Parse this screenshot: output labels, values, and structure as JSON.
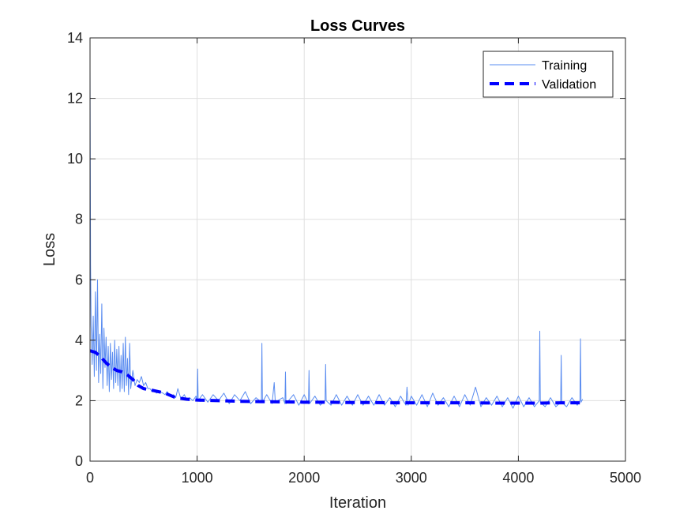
{
  "chart_data": {
    "type": "line",
    "title": "Loss Curves",
    "xlabel": "Iteration",
    "ylabel": "Loss",
    "xlim": [
      0,
      5000
    ],
    "ylim": [
      0,
      14
    ],
    "xticks": [
      "0",
      "1000",
      "2000",
      "3000",
      "4000",
      "5000"
    ],
    "yticks": [
      "0",
      "2",
      "4",
      "6",
      "8",
      "10",
      "12",
      "14"
    ],
    "grid": true,
    "legend_position": "top-right",
    "series": [
      {
        "name": "Training",
        "style": "solid-thin",
        "color": "#5a8cf0",
        "points": [
          [
            0,
            13.0
          ],
          [
            5,
            6.5
          ],
          [
            10,
            4.5
          ],
          [
            20,
            3.2
          ],
          [
            30,
            4.8
          ],
          [
            40,
            2.8
          ],
          [
            50,
            5.6
          ],
          [
            60,
            3.0
          ],
          [
            70,
            6.0
          ],
          [
            80,
            2.6
          ],
          [
            90,
            4.2
          ],
          [
            100,
            2.9
          ],
          [
            110,
            5.2
          ],
          [
            120,
            2.4
          ],
          [
            130,
            4.4
          ],
          [
            140,
            3.1
          ],
          [
            150,
            4.1
          ],
          [
            160,
            2.5
          ],
          [
            170,
            3.8
          ],
          [
            180,
            2.3
          ],
          [
            190,
            3.9
          ],
          [
            200,
            2.7
          ],
          [
            210,
            3.6
          ],
          [
            220,
            2.4
          ],
          [
            230,
            4.0
          ],
          [
            240,
            2.6
          ],
          [
            250,
            3.7
          ],
          [
            260,
            2.5
          ],
          [
            270,
            3.8
          ],
          [
            280,
            2.3
          ],
          [
            290,
            3.5
          ],
          [
            300,
            2.4
          ],
          [
            310,
            3.9
          ],
          [
            320,
            2.3
          ],
          [
            330,
            4.1
          ],
          [
            340,
            2.5
          ],
          [
            350,
            3.4
          ],
          [
            360,
            2.2
          ],
          [
            370,
            3.9
          ],
          [
            380,
            2.4
          ],
          [
            400,
            3.0
          ],
          [
            420,
            2.5
          ],
          [
            440,
            2.7
          ],
          [
            460,
            2.6
          ],
          [
            480,
            2.8
          ],
          [
            500,
            2.5
          ],
          [
            520,
            2.6
          ],
          [
            540,
            2.4
          ],
          [
            560,
            2.4
          ],
          [
            580,
            2.3
          ],
          [
            600,
            2.35
          ],
          [
            620,
            2.25
          ],
          [
            650,
            2.3
          ],
          [
            680,
            2.25
          ],
          [
            700,
            2.2
          ],
          [
            720,
            2.3
          ],
          [
            750,
            2.15
          ],
          [
            780,
            2.2
          ],
          [
            800,
            2.1
          ],
          [
            820,
            2.4
          ],
          [
            850,
            2.05
          ],
          [
            880,
            2.2
          ],
          [
            900,
            2.05
          ],
          [
            930,
            2.1
          ],
          [
            960,
            2.0
          ],
          [
            990,
            2.15
          ],
          [
            1000,
            2.0
          ],
          [
            1005,
            3.05
          ],
          [
            1010,
            2.0
          ],
          [
            1050,
            2.2
          ],
          [
            1100,
            1.95
          ],
          [
            1150,
            2.2
          ],
          [
            1200,
            2.0
          ],
          [
            1250,
            2.25
          ],
          [
            1300,
            1.9
          ],
          [
            1350,
            2.2
          ],
          [
            1400,
            2.0
          ],
          [
            1450,
            2.3
          ],
          [
            1500,
            1.9
          ],
          [
            1550,
            2.1
          ],
          [
            1600,
            1.95
          ],
          [
            1605,
            3.9
          ],
          [
            1610,
            1.95
          ],
          [
            1650,
            2.2
          ],
          [
            1700,
            1.9
          ],
          [
            1720,
            2.6
          ],
          [
            1730,
            1.95
          ],
          [
            1800,
            2.1
          ],
          [
            1820,
            1.9
          ],
          [
            1825,
            2.95
          ],
          [
            1830,
            1.9
          ],
          [
            1900,
            2.2
          ],
          [
            1950,
            1.85
          ],
          [
            2000,
            2.2
          ],
          [
            2040,
            1.9
          ],
          [
            2045,
            3.0
          ],
          [
            2050,
            1.9
          ],
          [
            2100,
            2.15
          ],
          [
            2150,
            1.85
          ],
          [
            2195,
            2.0
          ],
          [
            2200,
            3.2
          ],
          [
            2205,
            2.0
          ],
          [
            2250,
            1.85
          ],
          [
            2300,
            2.2
          ],
          [
            2350,
            1.85
          ],
          [
            2400,
            2.15
          ],
          [
            2450,
            1.85
          ],
          [
            2500,
            2.2
          ],
          [
            2550,
            1.85
          ],
          [
            2600,
            2.15
          ],
          [
            2650,
            1.85
          ],
          [
            2700,
            2.2
          ],
          [
            2750,
            1.85
          ],
          [
            2800,
            2.1
          ],
          [
            2850,
            1.8
          ],
          [
            2900,
            2.15
          ],
          [
            2950,
            1.85
          ],
          [
            2960,
            2.45
          ],
          [
            2970,
            1.85
          ],
          [
            3000,
            2.15
          ],
          [
            3050,
            1.85
          ],
          [
            3100,
            2.2
          ],
          [
            3150,
            1.8
          ],
          [
            3200,
            2.25
          ],
          [
            3250,
            1.85
          ],
          [
            3300,
            2.1
          ],
          [
            3350,
            1.8
          ],
          [
            3400,
            2.15
          ],
          [
            3450,
            1.8
          ],
          [
            3500,
            2.2
          ],
          [
            3550,
            1.85
          ],
          [
            3600,
            2.45
          ],
          [
            3650,
            1.8
          ],
          [
            3700,
            2.1
          ],
          [
            3750,
            1.85
          ],
          [
            3800,
            2.15
          ],
          [
            3850,
            1.8
          ],
          [
            3900,
            2.1
          ],
          [
            3950,
            1.75
          ],
          [
            4000,
            2.15
          ],
          [
            4050,
            1.8
          ],
          [
            4100,
            2.1
          ],
          [
            4150,
            1.8
          ],
          [
            4195,
            2.0
          ],
          [
            4200,
            4.3
          ],
          [
            4205,
            1.95
          ],
          [
            4250,
            1.8
          ],
          [
            4300,
            2.1
          ],
          [
            4350,
            1.8
          ],
          [
            4395,
            1.95
          ],
          [
            4400,
            3.5
          ],
          [
            4405,
            1.95
          ],
          [
            4450,
            1.8
          ],
          [
            4500,
            2.1
          ],
          [
            4550,
            1.85
          ],
          [
            4575,
            2.0
          ],
          [
            4580,
            4.05
          ],
          [
            4585,
            1.95
          ],
          [
            4600,
            2.05
          ]
        ]
      },
      {
        "name": "Validation",
        "style": "dashed-thick",
        "color": "#0000ff",
        "points": [
          [
            0,
            3.65
          ],
          [
            50,
            3.6
          ],
          [
            100,
            3.45
          ],
          [
            150,
            3.25
          ],
          [
            200,
            3.1
          ],
          [
            250,
            3.0
          ],
          [
            300,
            2.95
          ],
          [
            350,
            2.85
          ],
          [
            400,
            2.7
          ],
          [
            450,
            2.5
          ],
          [
            500,
            2.4
          ],
          [
            600,
            2.33
          ],
          [
            700,
            2.25
          ],
          [
            800,
            2.1
          ],
          [
            900,
            2.05
          ],
          [
            1000,
            2.02
          ],
          [
            1200,
            2.0
          ],
          [
            1400,
            1.98
          ],
          [
            1600,
            1.97
          ],
          [
            1800,
            1.96
          ],
          [
            2000,
            1.95
          ],
          [
            2200,
            1.95
          ],
          [
            2400,
            1.94
          ],
          [
            2600,
            1.94
          ],
          [
            2800,
            1.93
          ],
          [
            3000,
            1.93
          ],
          [
            3200,
            1.93
          ],
          [
            3400,
            1.93
          ],
          [
            3600,
            1.93
          ],
          [
            3800,
            1.92
          ],
          [
            4000,
            1.92
          ],
          [
            4200,
            1.92
          ],
          [
            4400,
            1.93
          ],
          [
            4600,
            1.93
          ]
        ]
      }
    ]
  }
}
